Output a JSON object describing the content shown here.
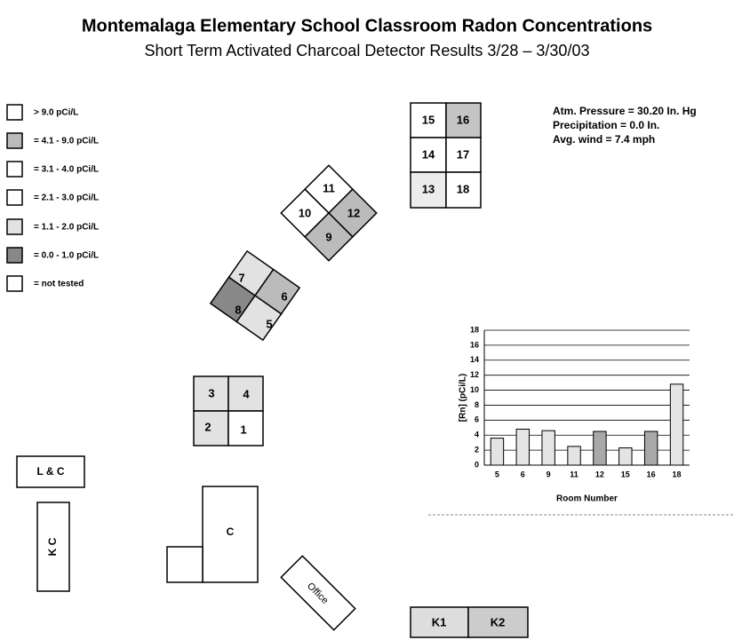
{
  "header": {
    "title": "Montemalaga Elementary School Classroom Radon Concentrations",
    "subtitle": "Short Term Activated Charcoal Detector Results 3/28 – 3/30/03"
  },
  "legend": [
    "> 9.0 pCi/L",
    "= 4.1 - 9.0 pCi/L",
    "= 3.1 - 4.0 pCi/L",
    "= 2.1 - 3.0 pCi/L",
    "= 1.1 - 2.0 pCi/L",
    "= 0.0 - 1.0 pCi/L",
    "= not tested"
  ],
  "notes": [
    "Atm. Pressure = 30.20 In. Hg",
    "Precipitation = 0.0 In.",
    "Avg. wind = 7.4 mph"
  ],
  "rooms": [
    "15",
    "16",
    "14",
    "17",
    "13",
    "18",
    "11",
    "10",
    "12",
    "9",
    "7",
    "6",
    "8",
    "5",
    "3",
    "4",
    "2",
    "1",
    "L & C",
    "K C",
    "C",
    "Office",
    "K1",
    "K2"
  ],
  "chart_data": {
    "type": "bar",
    "categories": [
      "5",
      "6",
      "9",
      "11",
      "12",
      "15",
      "16",
      "18"
    ],
    "values": [
      3.6,
      4.8,
      4.6,
      2.5,
      4.5,
      2.3,
      4.5,
      10.8
    ],
    "colors": [
      "#e4e4e4",
      "#e4e4e4",
      "#e4e4e4",
      "#e4e4e4",
      "#a8a8a8",
      "#e4e4e4",
      "#a8a8a8",
      "#e4e4e4"
    ],
    "ylim": [
      0,
      18
    ],
    "yticks": [
      0,
      2,
      4,
      6,
      8,
      10,
      12,
      14,
      16,
      18
    ],
    "grid": true,
    "ylabel": "[Rn] (pCi/L)",
    "xlabel": "Room Number"
  }
}
